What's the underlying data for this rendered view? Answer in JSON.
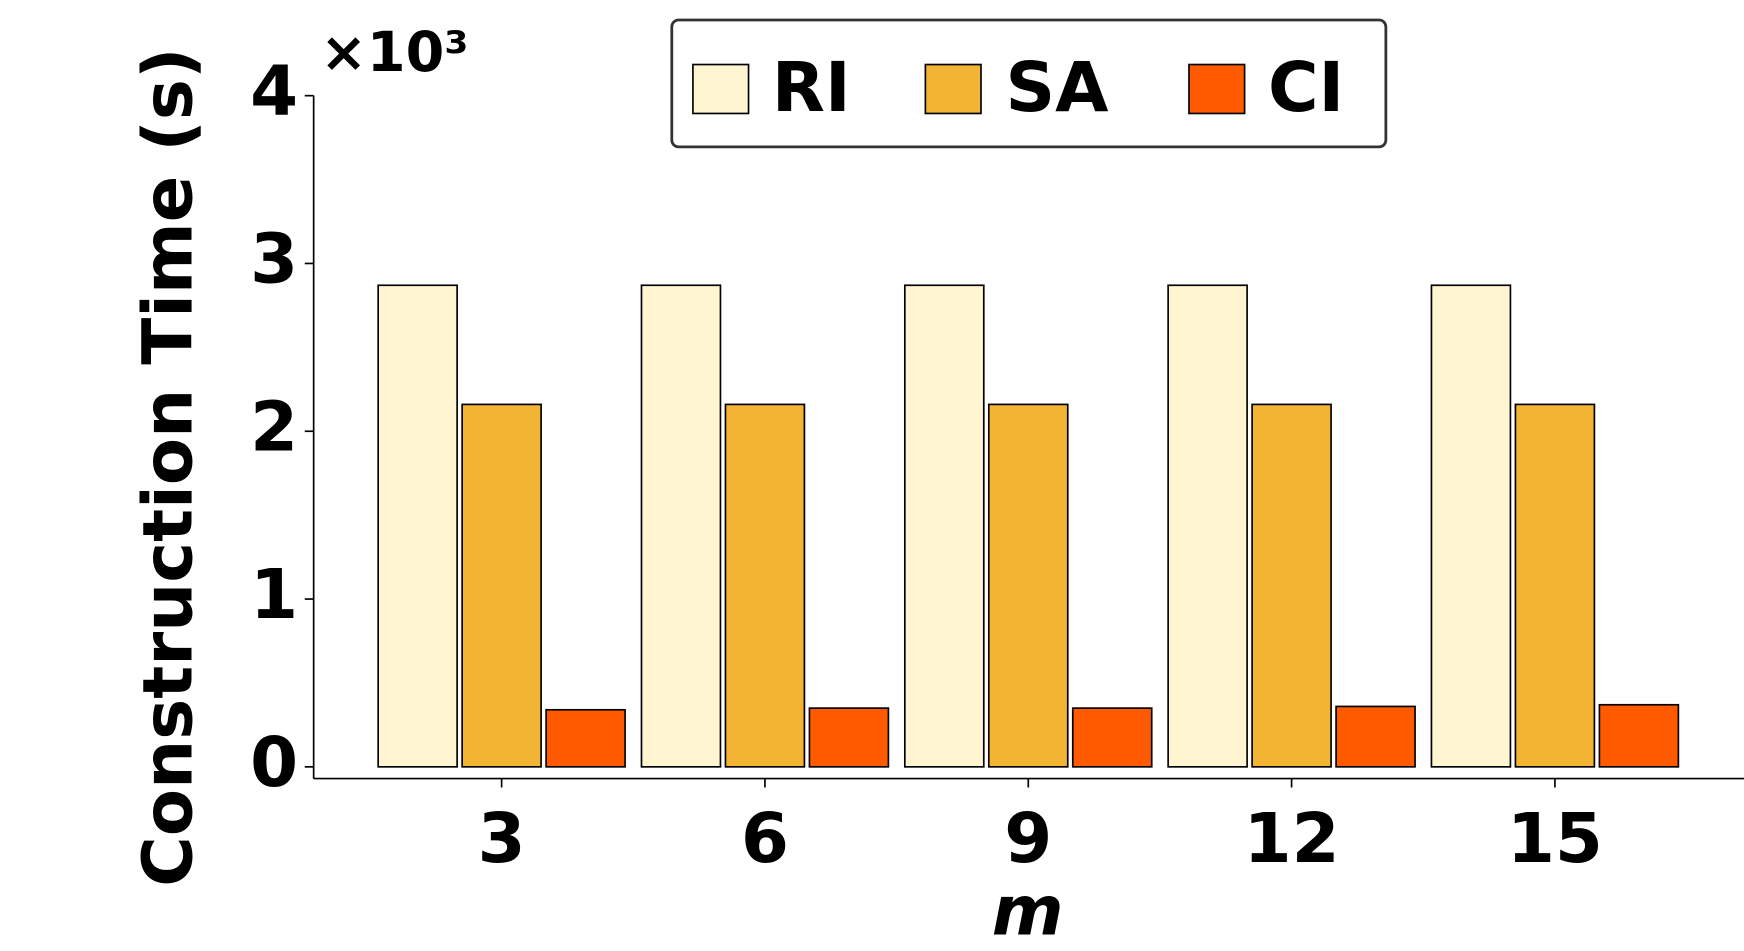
{
  "chart_data": {
    "type": "bar",
    "x_label": "m",
    "y_label": "Construction Time (s)",
    "y_multiplier": "×10³",
    "categories": [
      "3",
      "6",
      "9",
      "12",
      "15"
    ],
    "series": [
      {
        "name": "RI",
        "color": "#fff5d1",
        "values": [
          2.87,
          2.87,
          2.87,
          2.87,
          2.87
        ]
      },
      {
        "name": "SA",
        "color": "#f3b333",
        "values": [
          2.16,
          2.16,
          2.16,
          2.16,
          2.16
        ]
      },
      {
        "name": "CI",
        "color": "#ff5a00",
        "values": [
          0.34,
          0.35,
          0.35,
          0.36,
          0.37
        ]
      }
    ],
    "ylim": [
      -0.07,
      4.0
    ],
    "yticks": [
      0,
      1,
      2,
      3,
      4
    ],
    "legend": "upper center"
  }
}
